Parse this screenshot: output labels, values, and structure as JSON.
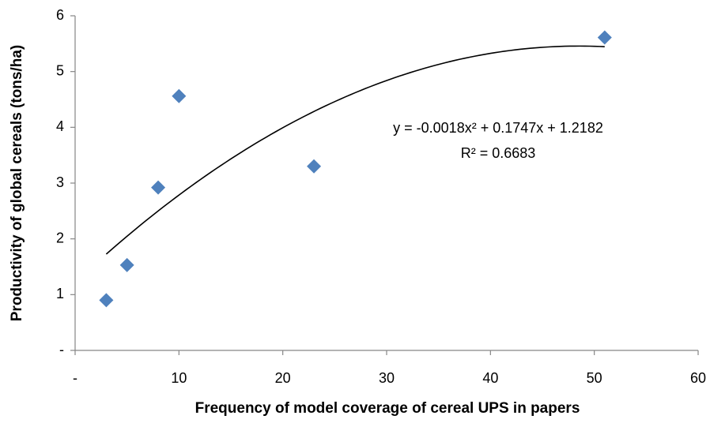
{
  "chart_data": {
    "type": "scatter",
    "xlabel": "Frequency of model coverage of cereal UPS in papers",
    "ylabel": "Productivity of global cereals (tons/ha)",
    "series": [
      {
        "name": "Productivity",
        "color": "#4f81bd",
        "x": [
          3,
          5,
          8,
          10,
          23,
          51
        ],
        "values": [
          0.9,
          1.53,
          2.92,
          4.56,
          3.3,
          5.61
        ]
      }
    ],
    "trendline": {
      "type": "polynomial",
      "coefficients": [
        -0.0018,
        0.1747,
        1.2182
      ],
      "color": "#000000",
      "equation": "y = -0.0018x² + 0.1747x + 1.2182",
      "r_squared": "R² = 0.6683"
    },
    "xlim": [
      0,
      60
    ],
    "xticks": [
      {
        "value": 0,
        "label": "-"
      },
      10,
      20,
      30,
      40,
      50,
      60
    ],
    "ylim": [
      0,
      6
    ],
    "yticks": [
      {
        "value": 0,
        "label": "-"
      },
      1,
      2,
      3,
      4,
      5,
      6
    ],
    "grid": false
  }
}
